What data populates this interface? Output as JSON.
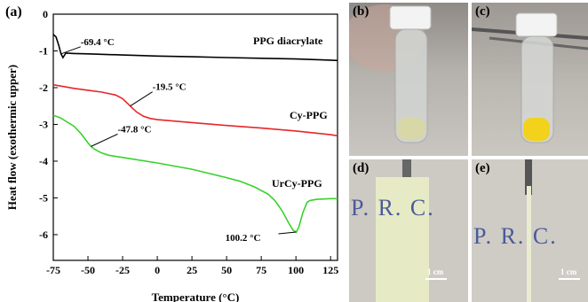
{
  "panel_labels": {
    "a": "(a)",
    "b": "(b)",
    "c": "(c)",
    "d": "(d)",
    "e": "(e)"
  },
  "chart_data": {
    "type": "line",
    "xlabel": "Temperature (°C)",
    "ylabel": "Heat flow (exothermic upper)",
    "xlim": [
      -75,
      130
    ],
    "ylim": [
      -6.7,
      0
    ],
    "xticks": [
      -75,
      -50,
      -25,
      0,
      25,
      50,
      75,
      100,
      125
    ],
    "yticks": [
      0,
      -1,
      -2,
      -3,
      -4,
      -5,
      -6
    ],
    "series": [
      {
        "name": "PPG diacrylate",
        "color": "#000000",
        "x": [
          -75,
          -73,
          -71,
          -69.4,
          -68,
          -67,
          -66,
          -60,
          -50,
          -25,
          0,
          25,
          50,
          75,
          100,
          125,
          130
        ],
        "y": [
          -0.55,
          -0.62,
          -0.85,
          -1.08,
          -1.18,
          -1.12,
          -1.06,
          -1.07,
          -1.08,
          -1.11,
          -1.14,
          -1.16,
          -1.18,
          -1.2,
          -1.22,
          -1.25,
          -1.26
        ]
      },
      {
        "name": "Cy-PPG",
        "color": "#e8262a",
        "x": [
          -75,
          -60,
          -50,
          -40,
          -30,
          -25,
          -19.5,
          -15,
          -10,
          -5,
          0,
          25,
          50,
          75,
          100,
          125,
          130
        ],
        "y": [
          -1.92,
          -2.02,
          -2.07,
          -2.12,
          -2.2,
          -2.3,
          -2.5,
          -2.66,
          -2.78,
          -2.84,
          -2.87,
          -2.95,
          -3.03,
          -3.1,
          -3.18,
          -3.28,
          -3.31
        ]
      },
      {
        "name": "UrCy-PPG",
        "color": "#3ad12c",
        "x": [
          -75,
          -70,
          -60,
          -55,
          -50,
          -47.8,
          -45,
          -40,
          -35,
          -25,
          0,
          25,
          50,
          60,
          70,
          80,
          85,
          90,
          95,
          98,
          100.2,
          102,
          105,
          108,
          110,
          115,
          120,
          125,
          130
        ],
        "y": [
          -2.75,
          -2.82,
          -3.05,
          -3.25,
          -3.5,
          -3.6,
          -3.68,
          -3.78,
          -3.84,
          -3.9,
          -4.05,
          -4.22,
          -4.45,
          -4.55,
          -4.7,
          -4.9,
          -5.08,
          -5.35,
          -5.7,
          -5.88,
          -5.93,
          -5.8,
          -5.4,
          -5.12,
          -5.07,
          -5.04,
          -5.03,
          -5.02,
          -5.02
        ]
      }
    ],
    "series_labels": [
      "PPG diacrylate",
      "Cy-PPG",
      "UrCy-PPG"
    ],
    "annotations": [
      {
        "text": "-69.4 °C",
        "x": -69.4,
        "y": -1.08
      },
      {
        "text": "-19.5 °C",
        "x": -19.5,
        "y": -2.5
      },
      {
        "text": "-47.8 °C",
        "x": -47.8,
        "y": -3.6
      },
      {
        "text": "100.2 °C",
        "x": 100.2,
        "y": -5.93
      }
    ],
    "grid": false,
    "legend": "none"
  },
  "photos": {
    "d_handwriting": "P. R. C.",
    "e_handwriting": "P. R. C.",
    "scale_bar_d": "1 cm",
    "scale_bar_e": "1 cm"
  },
  "colors": {
    "photo_background_top": "#9a9590",
    "vial_liquid_b": "#d8d7a8",
    "vial_liquid_c": "#f2d21a",
    "film_d": "#e6ebc6",
    "filament_e": "#e9ecd0"
  }
}
